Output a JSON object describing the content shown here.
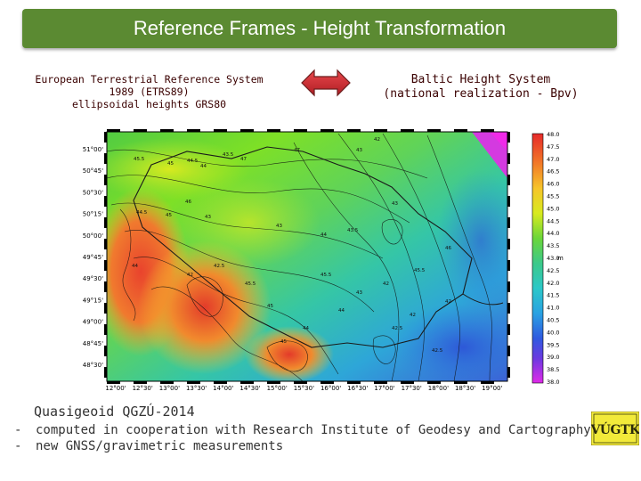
{
  "title": "Reference Frames - Height Transformation",
  "left_caption": {
    "line1": "European Terrestrial Reference System",
    "line2": "1989 (ETRS89)",
    "line3": "ellipsoidal heights GRS80"
  },
  "right_caption": {
    "line1": "Baltic Height System",
    "line2": "(national realization - Bpv)"
  },
  "map": {
    "lat_labels": [
      "51°00'",
      "50°45'",
      "50°30'",
      "50°15'",
      "50°00'",
      "49°45'",
      "49°30'",
      "49°15'",
      "49°00'",
      "48°45'",
      "48°30'"
    ],
    "lon_labels": [
      "12°00'",
      "12°30'",
      "13°00'",
      "13°30'",
      "14°00'",
      "14°30'",
      "15°00'",
      "15°30'",
      "16°00'",
      "16°30'",
      "17°00'",
      "17°30'",
      "18°00'",
      "18°30'",
      "19°00'"
    ],
    "scale_labels": [
      "48.0",
      "47.5",
      "47.0",
      "46.5",
      "46.0",
      "45.5",
      "45.0",
      "44.5",
      "44.0",
      "43.5",
      "43.0",
      "42.5",
      "42.0",
      "41.5",
      "41.0",
      "40.5",
      "40.0",
      "39.5",
      "39.0",
      "38.5",
      "38.0"
    ],
    "scale_unit": "m",
    "contour_labels": [
      "47",
      "45.5",
      "45",
      "44.5",
      "44",
      "43.5",
      "43",
      "42",
      "47",
      "46",
      "45",
      "44.5",
      "44",
      "43",
      "44",
      "43.5",
      "43",
      "42.5",
      "43",
      "42",
      "45.5",
      "42",
      "42.5",
      "45",
      "45",
      "44",
      "44",
      "42",
      "45.5",
      "46",
      "43",
      "45.5",
      "42.5",
      "42"
    ]
  },
  "quasigeoid": "Quasigeoid QGZÚ-2014",
  "bullets": [
    {
      "dash": "-",
      "text": "computed in cooperation with Research Institute of Geodesy and Cartography"
    },
    {
      "dash": "-",
      "text": "new GNSS/gravimetric measurements"
    }
  ],
  "logo_text": "VÚGTK"
}
